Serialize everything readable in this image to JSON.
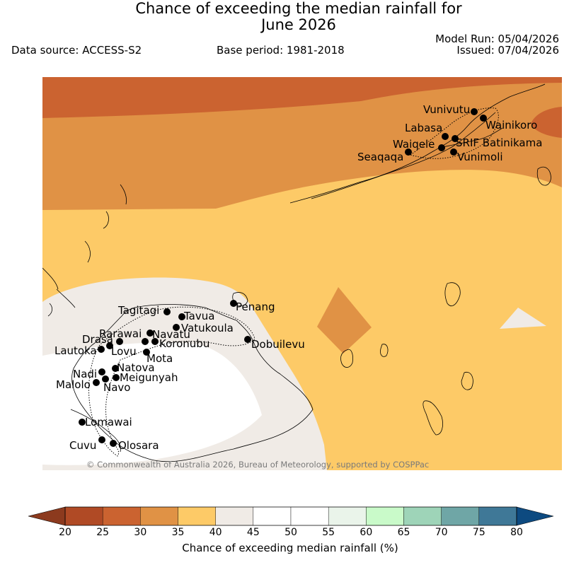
{
  "header": {
    "title_line1": "Chance of exceeding the median rainfall for",
    "title_line2": "June 2026",
    "data_source": "Data source: ACCESS-S2",
    "base_period": "Base period: 1981-2018",
    "model_run": "Model Run: 05/04/2026",
    "issued": "Issued: 07/04/2026"
  },
  "map": {
    "copyright": "© Commonwealth of Australia 2026, Bureau of Meteorology, supported by COSPPac",
    "band_colors": {
      "20-25": "#b04a25",
      "25-30": "#cb6330",
      "30-35": "#e09245",
      "35-40": "#fdca67",
      "40-45": "#f0ebe6",
      "45-55": "#ffffff"
    },
    "locations": [
      {
        "name": "Vunivutu"
      },
      {
        "name": "Wainikoro"
      },
      {
        "name": "Labasa"
      },
      {
        "name": "SRIF Batinikama"
      },
      {
        "name": "Waiqele"
      },
      {
        "name": "Seaqaqa"
      },
      {
        "name": "Vunimoli"
      },
      {
        "name": "Tagitagi"
      },
      {
        "name": "Penang"
      },
      {
        "name": "Tavua"
      },
      {
        "name": "Vatukoula"
      },
      {
        "name": "Rarawai"
      },
      {
        "name": "Navatu"
      },
      {
        "name": "Drasa"
      },
      {
        "name": "Koronubu"
      },
      {
        "name": "Lautoka"
      },
      {
        "name": "Lovu"
      },
      {
        "name": "Dobuilevu"
      },
      {
        "name": "Mota"
      },
      {
        "name": "Natova"
      },
      {
        "name": "Nadi"
      },
      {
        "name": "Meigunyah"
      },
      {
        "name": "Malolo"
      },
      {
        "name": "Navo"
      },
      {
        "name": "Lomawai"
      },
      {
        "name": "Cuvu"
      },
      {
        "name": "Olosara"
      }
    ]
  },
  "legend": {
    "title": "Chance of exceeding median rainfall (%)",
    "ticks": [
      "20",
      "25",
      "30",
      "35",
      "40",
      "45",
      "50",
      "55",
      "60",
      "65",
      "70",
      "75",
      "80"
    ],
    "colors": [
      "#b04a25",
      "#cb6330",
      "#e09245",
      "#fdca67",
      "#f0ebe6",
      "#ffffff",
      "#ffffff",
      "#eaf4ea",
      "#c9fac9",
      "#9ed4b8",
      "#6fa6a6",
      "#3f7897"
    ],
    "under_color": "#8c3a1e",
    "over_color": "#0d4a80"
  }
}
